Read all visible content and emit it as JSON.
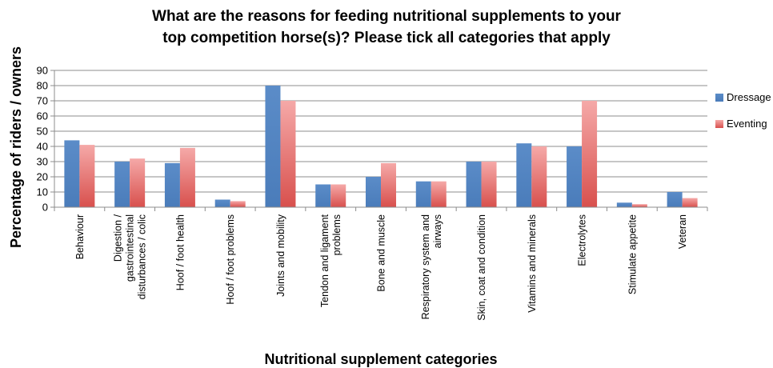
{
  "chart_data": {
    "type": "bar",
    "title_lines": [
      "What are the reasons for feeding nutritional supplements to your",
      "top competition horse(s)? Please tick all categories that apply"
    ],
    "xlabel": "Nutritional supplement categories",
    "ylabel": "Percentage of riders / owners",
    "ylim": [
      0,
      90
    ],
    "yticks": [
      0,
      10,
      20,
      30,
      40,
      50,
      60,
      70,
      80,
      90
    ],
    "grid": true,
    "legend_position": "right",
    "categories": [
      [
        "Behaviour"
      ],
      [
        "Digestion /",
        "gastrointestinal",
        "disturbances / colic"
      ],
      [
        "Hoof / foot health"
      ],
      [
        "Hoof / foot problems"
      ],
      [
        "Joints and mobility"
      ],
      [
        "Tendon and ligament",
        "problems"
      ],
      [
        "Bone and muscle"
      ],
      [
        "Respiratory system and",
        "airways"
      ],
      [
        "Skin, coat and condition"
      ],
      [
        "Vitamins and minerals"
      ],
      [
        "Electrolytes"
      ],
      [
        "Stimulate appetite"
      ],
      [
        "Veteran"
      ]
    ],
    "series": [
      {
        "name": "Dressage",
        "color": "#4f81bd",
        "values": [
          44,
          30,
          29,
          5,
          80,
          15,
          20,
          17,
          30,
          42,
          40,
          3,
          10
        ]
      },
      {
        "name": "Eventing",
        "color": "#e46c6a",
        "values": [
          41,
          32,
          39,
          4,
          70,
          15,
          29,
          17,
          30,
          40,
          70,
          2,
          6
        ]
      }
    ]
  }
}
